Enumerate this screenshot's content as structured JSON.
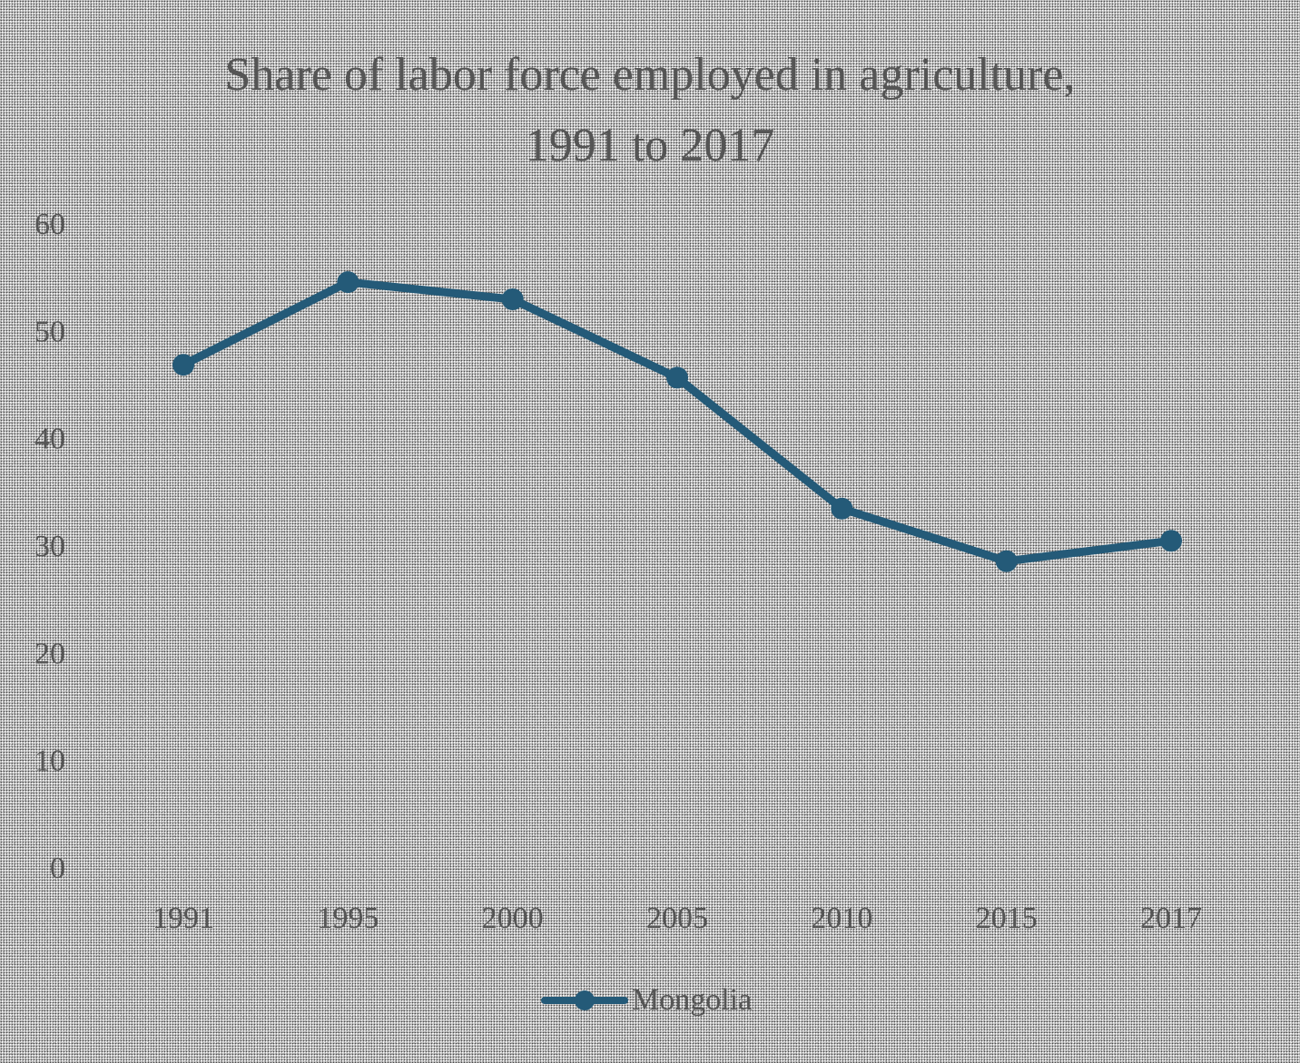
{
  "chart_data": {
    "type": "line",
    "title": "Share of labor force employed in agriculture, 1991 to 2017",
    "categories": [
      "1991",
      "1995",
      "2000",
      "2005",
      "2010",
      "2015",
      "2017"
    ],
    "series": [
      {
        "name": "Mongolia",
        "values": [
          46.8,
          54.5,
          52.9,
          45.6,
          33.4,
          28.5,
          30.4
        ],
        "color": "#245a78"
      }
    ],
    "yticks": [
      "0",
      "10",
      "20",
      "30",
      "40",
      "50",
      "60"
    ],
    "ylim": [
      0,
      60
    ],
    "grid": false,
    "legend_position": "bottom"
  }
}
